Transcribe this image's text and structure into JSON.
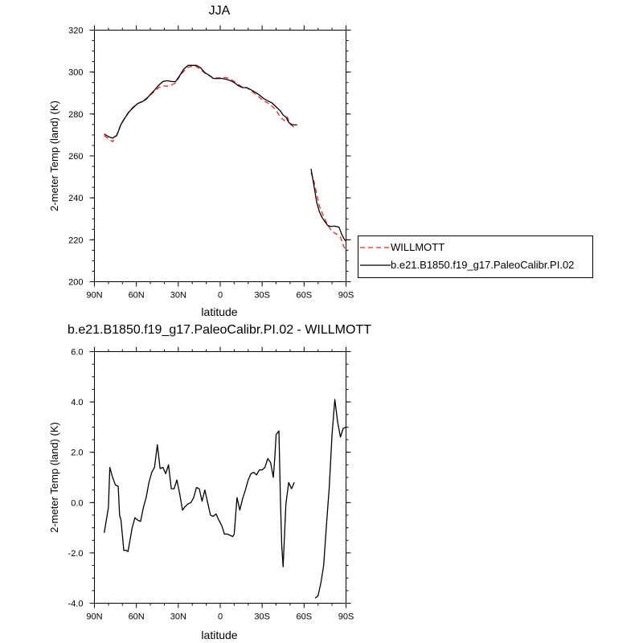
{
  "chart_data": [
    {
      "type": "line",
      "title": "JJA",
      "xlabel": "latitude",
      "ylabel": "2-meter Temp (land) (K)",
      "xlim": [
        90,
        -90
      ],
      "ylim": [
        200,
        320
      ],
      "xticks": [
        90,
        60,
        30,
        0,
        -30,
        -60,
        -90
      ],
      "xtick_labels": [
        "90N",
        "60N",
        "30N",
        "0",
        "30S",
        "60S",
        "90S"
      ],
      "yticks": [
        200,
        220,
        240,
        260,
        280,
        300,
        320
      ],
      "ytick_labels": [
        "200",
        "220",
        "240",
        "260",
        "280",
        "300",
        "320"
      ],
      "legend_position": "right",
      "series": [
        {
          "name": "WILLMOTT",
          "color": "#e32626",
          "dash": true,
          "segments": [
            [
              [
                83,
                269.8
              ],
              [
                80,
                268.2
              ],
              [
                77,
                266.8
              ],
              [
                74,
                270.2
              ],
              [
                71,
                275.2
              ],
              [
                68,
                278.5
              ],
              [
                65,
                281.5
              ],
              [
                62,
                283.5
              ],
              [
                59,
                285
              ],
              [
                56,
                286
              ],
              [
                53,
                287.4
              ],
              [
                50,
                289
              ],
              [
                47,
                290.8
              ],
              [
                44,
                292.6
              ],
              [
                41,
                293.5
              ],
              [
                38,
                293.2
              ],
              [
                35,
                293.8
              ],
              [
                32,
                294.8
              ],
              [
                29,
                298
              ],
              [
                26,
                300.5
              ],
              [
                23,
                302.3
              ],
              [
                20,
                302.8
              ],
              [
                17,
                302.6
              ],
              [
                14,
                301.2
              ],
              [
                11,
                299.5
              ],
              [
                8,
                298.3
              ],
              [
                5,
                297.3
              ],
              [
                2,
                297.2
              ],
              [
                -1,
                297.4
              ],
              [
                -4,
                297.4
              ],
              [
                -7,
                296.8
              ],
              [
                -10,
                295.5
              ],
              [
                -13,
                294
              ],
              [
                -16,
                292.8
              ],
              [
                -19,
                292.5
              ],
              [
                -22,
                291.2
              ],
              [
                -25,
                289.6
              ],
              [
                -28,
                288
              ],
              [
                -31,
                286.3
              ],
              [
                -34,
                285.3
              ],
              [
                -37,
                283.7
              ],
              [
                -40,
                281.8
              ],
              [
                -43,
                278.5
              ],
              [
                -46,
                276.8
              ],
              [
                -48,
                278.5
              ],
              [
                -50,
                275.2
              ],
              [
                -53,
                273.6
              ],
              [
                -55,
                273.7
              ]
            ],
            [
              [
                -65,
                252
              ],
              [
                -67,
                248
              ],
              [
                -69,
                242
              ],
              [
                -71,
                236
              ],
              [
                -74,
                231
              ],
              [
                -77,
                227
              ],
              [
                -80,
                224
              ],
              [
                -83,
                222.8
              ],
              [
                -86,
                221.3
              ],
              [
                -88,
                217.5
              ],
              [
                -90,
                214.5
              ]
            ]
          ]
        },
        {
          "name": "b.e21.B1850.f19_g17.PaleoCalibr.PI.02",
          "color": "#000000",
          "dash": false,
          "segments": [
            [
              [
                83,
                270.5
              ],
              [
                80,
                269.2
              ],
              [
                77,
                268.5
              ],
              [
                74,
                269.8
              ],
              [
                71,
                275
              ],
              [
                68,
                278.3
              ],
              [
                65,
                281.2
              ],
              [
                62,
                283.2
              ],
              [
                59,
                285
              ],
              [
                56,
                285.8
              ],
              [
                53,
                287
              ],
              [
                50,
                289.3
              ],
              [
                47,
                291.4
              ],
              [
                44,
                293.7
              ],
              [
                41,
                295.5
              ],
              [
                38,
                295.9
              ],
              [
                35,
                295.5
              ],
              [
                32,
                295.4
              ],
              [
                29,
                298.3
              ],
              [
                26,
                301.5
              ],
              [
                23,
                303.2
              ],
              [
                20,
                303.2
              ],
              [
                17,
                303.2
              ],
              [
                14,
                302
              ],
              [
                11,
                299.7
              ],
              [
                8,
                298.5
              ],
              [
                5,
                297
              ],
              [
                2,
                296.9
              ],
              [
                -1,
                297
              ],
              [
                -4,
                296.6
              ],
              [
                -7,
                296
              ],
              [
                -10,
                295
              ],
              [
                -13,
                293.5
              ],
              [
                -16,
                292.6
              ],
              [
                -19,
                292.6
              ],
              [
                -22,
                291.5
              ],
              [
                -25,
                290.4
              ],
              [
                -28,
                289.1
              ],
              [
                -31,
                287.4
              ],
              [
                -34,
                286.3
              ],
              [
                -37,
                285.3
              ],
              [
                -40,
                283.4
              ],
              [
                -43,
                281.5
              ],
              [
                -45,
                279.5
              ],
              [
                -47,
                278.5
              ],
              [
                -49,
                276
              ],
              [
                -51,
                275
              ],
              [
                -53,
                274.8
              ],
              [
                -55,
                274.8
              ]
            ],
            [
              [
                -65,
                253.8
              ],
              [
                -67,
                246
              ],
              [
                -69,
                238
              ],
              [
                -71,
                233.3
              ],
              [
                -73,
                230.5
              ],
              [
                -75,
                228.5
              ],
              [
                -77,
                226.8
              ],
              [
                -79,
                226.4
              ],
              [
                -82,
                226.5
              ],
              [
                -85,
                226
              ],
              [
                -87,
                222.5
              ],
              [
                -89,
                220
              ],
              [
                -90,
                219.5
              ]
            ]
          ]
        }
      ]
    },
    {
      "type": "line",
      "title": "b.e21.B1850.f19_g17.PaleoCalibr.PI.02 - WILLMOTT",
      "xlabel": "latitude",
      "ylabel": "2-meter Temp (land) (K)",
      "xlim": [
        90,
        -90
      ],
      "ylim": [
        -4,
        6
      ],
      "xticks": [
        90,
        60,
        30,
        0,
        -30,
        -60,
        -90
      ],
      "xtick_labels": [
        "90N",
        "60N",
        "30N",
        "0",
        "30S",
        "60S",
        "90S"
      ],
      "yticks": [
        -4,
        -2,
        0,
        2,
        4,
        6
      ],
      "ytick_labels": [
        "-4.0",
        "-2.0",
        "0.0",
        "2.0",
        "4.0",
        "6.0"
      ],
      "series": [
        {
          "color": "#000000",
          "dash": false,
          "segments": [
            [
              [
                83,
                -1.2
              ],
              [
                80,
                -0.2
              ],
              [
                79,
                1.4
              ],
              [
                77,
                1.0
              ],
              [
                75,
                0.7
              ],
              [
                73,
                0.65
              ],
              [
                72,
                -0.5
              ],
              [
                71,
                -0.7
              ],
              [
                69,
                -1.9
              ],
              [
                67,
                -1.9
              ],
              [
                66,
                -1.95
              ],
              [
                63,
                -1.0
              ],
              [
                61,
                -0.6
              ],
              [
                59,
                -0.7
              ],
              [
                57,
                -0.75
              ],
              [
                55,
                -0.2
              ],
              [
                53,
                0.2
              ],
              [
                51,
                0.8
              ],
              [
                49,
                1.2
              ],
              [
                47,
                1.4
              ],
              [
                45,
                2.3
              ],
              [
                43,
                1.35
              ],
              [
                41,
                1.4
              ],
              [
                39,
                1.15
              ],
              [
                37,
                1.5
              ],
              [
                35,
                0.55
              ],
              [
                33,
                0.55
              ],
              [
                31,
                0.9
              ],
              [
                29,
                0.35
              ],
              [
                27,
                -0.3
              ],
              [
                25,
                -0.15
              ],
              [
                23,
                -0.05
              ],
              [
                21,
                0.0
              ],
              [
                19,
                0.2
              ],
              [
                17,
                0.6
              ],
              [
                15,
                0.55
              ],
              [
                13,
                0.05
              ],
              [
                11,
                0.5
              ],
              [
                9,
                0.0
              ],
              [
                7,
                -0.5
              ],
              [
                5,
                -0.55
              ],
              [
                3,
                -0.45
              ],
              [
                1,
                -0.7
              ],
              [
                -1,
                -0.9
              ],
              [
                -3,
                -1.25
              ],
              [
                -5,
                -1.25
              ],
              [
                -7,
                -1.3
              ],
              [
                -9,
                -1.35
              ],
              [
                -10,
                -1.25
              ],
              [
                -12,
                0.2
              ],
              [
                -14,
                -0.3
              ],
              [
                -16,
                0.15
              ],
              [
                -18,
                0.5
              ],
              [
                -20,
                0.9
              ],
              [
                -22,
                1.15
              ],
              [
                -24,
                1.2
              ],
              [
                -26,
                1.1
              ],
              [
                -28,
                1.3
              ],
              [
                -30,
                1.3
              ],
              [
                -32,
                1.4
              ],
              [
                -34,
                1.75
              ],
              [
                -36,
                1.6
              ],
              [
                -38,
                1.0
              ],
              [
                -39,
                1.75
              ],
              [
                -40,
                2.7
              ],
              [
                -42,
                2.85
              ],
              [
                -43,
                0.3
              ],
              [
                -44,
                -1.7
              ],
              [
                -45,
                -2.55
              ],
              [
                -47,
                -0.05
              ],
              [
                -49,
                0.8
              ],
              [
                -51,
                0.55
              ],
              [
                -53,
                0.8
              ]
            ],
            [
              [
                -68,
                -3.8
              ],
              [
                -70,
                -3.7
              ],
              [
                -72,
                -3.2
              ],
              [
                -74,
                -2.5
              ],
              [
                -76,
                -0.9
              ],
              [
                -78,
                0.6
              ],
              [
                -80,
                2.7
              ],
              [
                -82,
                4.1
              ],
              [
                -84,
                3.2
              ],
              [
                -86,
                2.6
              ],
              [
                -88,
                2.95
              ],
              [
                -90,
                3.0
              ]
            ]
          ]
        }
      ]
    }
  ]
}
